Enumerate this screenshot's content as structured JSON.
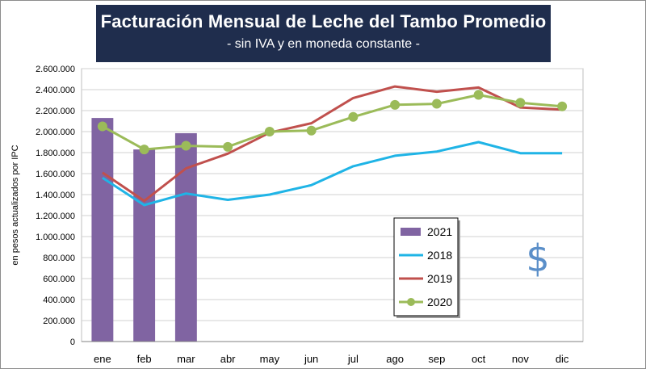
{
  "chart_data": {
    "type": "bar+line",
    "title": "Facturación Mensual de Leche del Tambo Promedio",
    "subtitle": "- sin IVA y en moneda constante -",
    "ylabel": "en pesos actualizados por IPC",
    "categories": [
      "ene",
      "feb",
      "mar",
      "abr",
      "may",
      "jun",
      "jul",
      "ago",
      "sep",
      "oct",
      "nov",
      "dic"
    ],
    "ylim": [
      0,
      2600000
    ],
    "yticks": [
      0,
      200000,
      400000,
      600000,
      800000,
      1000000,
      1200000,
      1400000,
      1600000,
      1800000,
      2000000,
      2200000,
      2400000,
      2600000
    ],
    "ytick_labels": [
      "0",
      "200.000",
      "400.000",
      "600.000",
      "800.000",
      "1.000.000",
      "1.200.000",
      "1.400.000",
      "1.600.000",
      "1.800.000",
      "2.000.000",
      "2.200.000",
      "2.400.000",
      "2.600.000"
    ],
    "grid": true,
    "legend_position": "center-right",
    "series": [
      {
        "name": "2021",
        "kind": "bar",
        "color": "#8064a2",
        "values": [
          2130000,
          1830000,
          1985000,
          null,
          null,
          null,
          null,
          null,
          null,
          null,
          null,
          null
        ]
      },
      {
        "name": "2018",
        "kind": "line",
        "color": "#1fb4e6",
        "marker": false,
        "values": [
          1560000,
          1300000,
          1410000,
          1350000,
          1400000,
          1490000,
          1670000,
          1770000,
          1810000,
          1900000,
          1795000,
          1795000
        ]
      },
      {
        "name": "2019",
        "kind": "line",
        "color": "#c0504d",
        "marker": false,
        "values": [
          1610000,
          1340000,
          1650000,
          1790000,
          1990000,
          2080000,
          2320000,
          2430000,
          2380000,
          2420000,
          2230000,
          2210000
        ]
      },
      {
        "name": "2020",
        "kind": "line",
        "color": "#9bbb59",
        "marker": true,
        "values": [
          2050000,
          1830000,
          1865000,
          1855000,
          2000000,
          2010000,
          2140000,
          2255000,
          2265000,
          2350000,
          2275000,
          2240000
        ]
      }
    ],
    "annotation": "$"
  }
}
